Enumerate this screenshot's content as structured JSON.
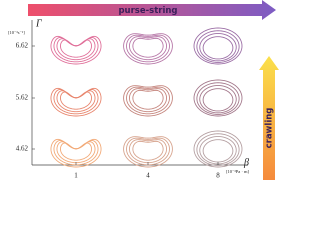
{
  "arrows": {
    "top": "purse-string",
    "right": "crawling"
  },
  "y_axis": {
    "label": "Γ",
    "unit": "[10⁻³s⁻¹]",
    "ticks": [
      "6.62",
      "5.62",
      "4.62"
    ]
  },
  "x_axis": {
    "label": "β",
    "unit": "[10⁻³Pa · m]",
    "ticks": [
      "1",
      "4",
      "8"
    ]
  }
}
